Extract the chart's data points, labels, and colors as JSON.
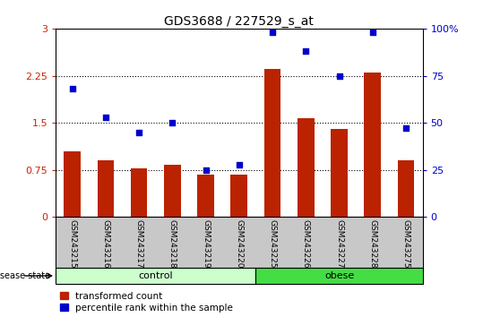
{
  "title": "GDS3688 / 227529_s_at",
  "categories": [
    "GSM243215",
    "GSM243216",
    "GSM243217",
    "GSM243218",
    "GSM243219",
    "GSM243220",
    "GSM243225",
    "GSM243226",
    "GSM243227",
    "GSM243228",
    "GSM243275"
  ],
  "bar_values": [
    1.05,
    0.9,
    0.78,
    0.83,
    0.67,
    0.67,
    2.35,
    1.58,
    1.4,
    2.3,
    0.9
  ],
  "scatter_values": [
    68,
    53,
    45,
    50,
    25,
    28,
    98,
    88,
    75,
    98,
    47
  ],
  "bar_color": "#bb2200",
  "scatter_color": "#0000cc",
  "ylim_left": [
    0,
    3
  ],
  "ylim_right": [
    0,
    100
  ],
  "yticks_left": [
    0,
    0.75,
    1.5,
    2.25,
    3
  ],
  "ytick_labels_left": [
    "0",
    "0.75",
    "1.5",
    "2.25",
    "3"
  ],
  "yticks_right": [
    0,
    25,
    50,
    75,
    100
  ],
  "ytick_labels_right": [
    "0",
    "25",
    "50",
    "75",
    "100%"
  ],
  "hlines": [
    0.75,
    1.5,
    2.25
  ],
  "n_control": 6,
  "n_obese": 5,
  "group_label_control": "control",
  "group_label_obese": "obese",
  "disease_state_label": "disease state",
  "legend_bar_label": "transformed count",
  "legend_scatter_label": "percentile rank within the sample",
  "background_color": "#ffffff",
  "plot_bg_color": "#ffffff",
  "label_bg_color": "#c8c8c8",
  "group_control_color": "#ccffcc",
  "group_obese_color": "#44dd44",
  "ylabel_left_color": "#cc2200",
  "ylabel_right_color": "#0000cc"
}
